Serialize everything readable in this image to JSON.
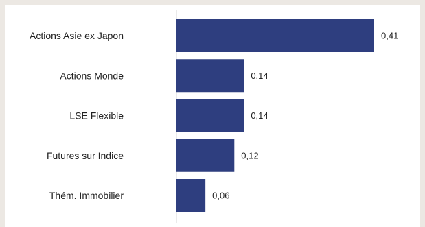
{
  "chart_data": {
    "type": "bar",
    "orientation": "horizontal",
    "categories": [
      "Actions Asie ex Japon",
      "Actions Monde",
      "LSE Flexible",
      "Futures sur Indice",
      "Thém. Immobilier"
    ],
    "values": [
      0.41,
      0.14,
      0.14,
      0.12,
      0.06
    ],
    "value_labels": [
      "0,41",
      "0,14",
      "0,14",
      "0,12",
      "0,06"
    ],
    "xlim": [
      0,
      0.41
    ],
    "bar_color": "#2e3e7f",
    "grid": false,
    "legend": "none"
  }
}
